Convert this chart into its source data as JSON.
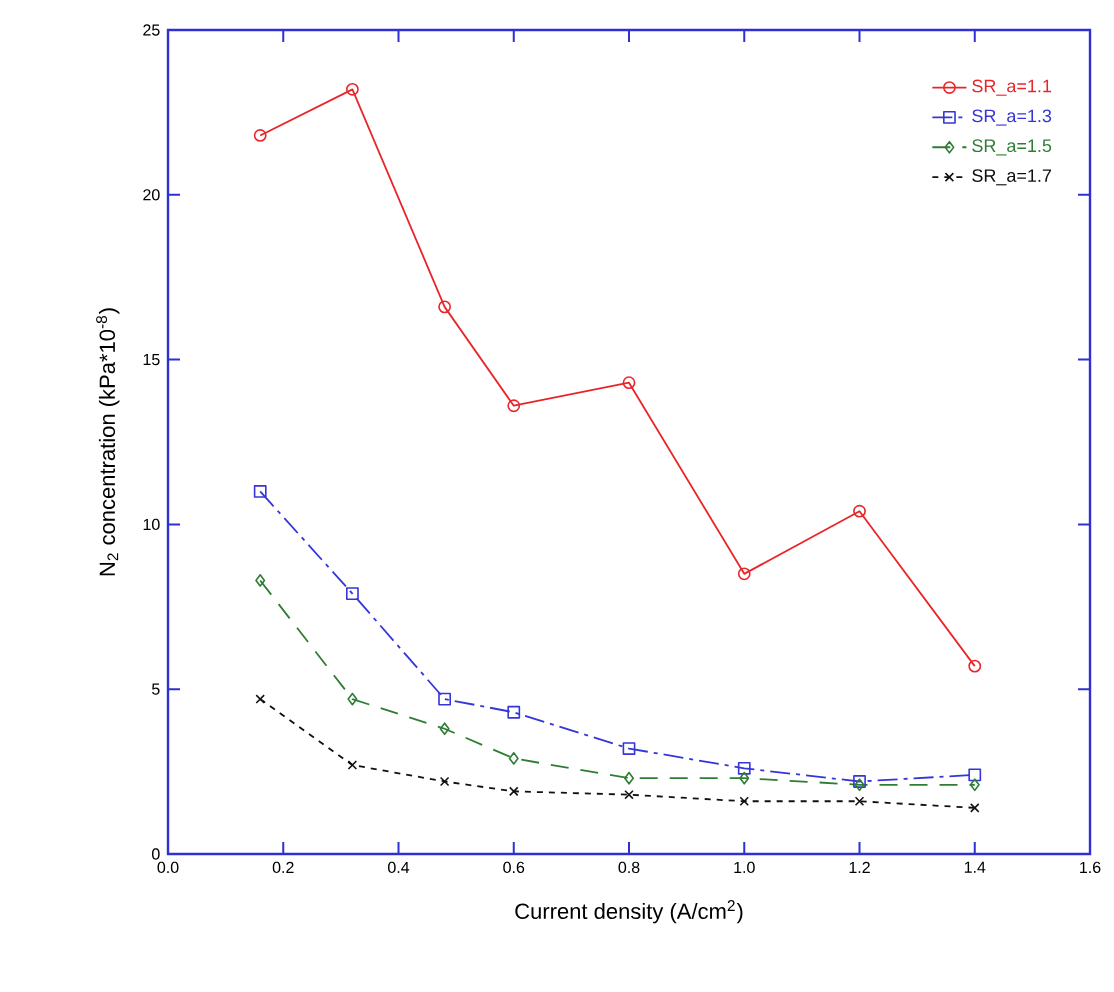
{
  "chart_data": {
    "type": "line",
    "xlabel": "Current density (A/cm$^{2}$)",
    "ylabel": "N$_{2}$ concentration (kPa*10$^{-8}$)",
    "x": [
      0.16,
      0.32,
      0.48,
      0.6,
      0.8,
      1.0,
      1.2,
      1.4
    ],
    "series": [
      {
        "name": "SR_a=1.1",
        "color": "#e8262a",
        "marker": "circle",
        "line_style": "solid",
        "values": [
          21.8,
          23.2,
          16.6,
          13.6,
          14.3,
          8.5,
          10.4,
          5.7
        ]
      },
      {
        "name": "SR_a=1.3",
        "color": "#3535d8",
        "marker": "square",
        "line_style": "dashdot",
        "values": [
          11.0,
          7.9,
          4.7,
          4.3,
          3.2,
          2.6,
          2.2,
          2.4
        ]
      },
      {
        "name": "SR_a=1.5",
        "color": "#2e7d32",
        "marker": "diamond",
        "line_style": "longdash",
        "values": [
          8.3,
          4.7,
          3.8,
          2.9,
          2.3,
          2.3,
          2.1,
          2.1
        ]
      },
      {
        "name": "SR_a=1.7",
        "color": "#111111",
        "marker": "cross",
        "line_style": "dashed",
        "values": [
          4.7,
          2.7,
          2.2,
          1.9,
          1.8,
          1.6,
          1.6,
          1.4
        ]
      }
    ],
    "xlim": [
      0.0,
      1.6
    ],
    "xticks": [
      {
        "value": 0.0,
        "label": "0.0"
      },
      {
        "value": 0.2,
        "label": "0.2"
      },
      {
        "value": 0.4,
        "label": "0.4"
      },
      {
        "value": 0.6,
        "label": "0.6"
      },
      {
        "value": 0.8,
        "label": "0.8"
      },
      {
        "value": 1.0,
        "label": "1.0"
      },
      {
        "value": 1.2,
        "label": "1.2"
      },
      {
        "value": 1.4,
        "label": "1.4"
      },
      {
        "value": 1.6,
        "label": "1.6"
      }
    ],
    "ylim": [
      0,
      25
    ],
    "yticks": [
      0,
      5,
      10,
      15,
      20,
      25
    ],
    "grid": false,
    "legend": "top right"
  }
}
